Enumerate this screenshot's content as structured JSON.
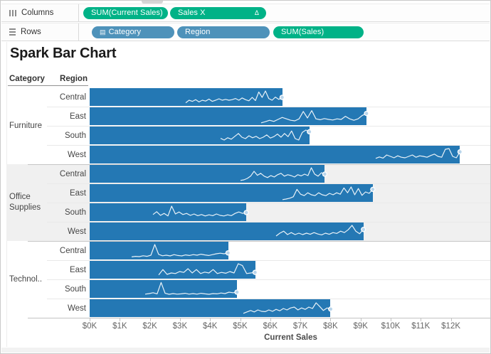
{
  "shelves": {
    "columns": {
      "label": "Columns",
      "pills": [
        {
          "label": "SUM(Current Sales)",
          "type": "continuous-measure"
        },
        {
          "label": "Sales X",
          "type": "continuous-measure",
          "badge": "Δ"
        }
      ]
    },
    "rows": {
      "label": "Rows",
      "pills": [
        {
          "label": "Category",
          "type": "discrete-dimension",
          "icon": "▤"
        },
        {
          "label": "Region",
          "type": "discrete-dimension"
        },
        {
          "label": "SUM(Sales)",
          "type": "continuous-measure"
        }
      ]
    }
  },
  "sheet": {
    "title": "Spark Bar Chart",
    "col_headers": [
      "Category",
      "Region"
    ],
    "axis": {
      "title": "Current Sales",
      "ticks": [
        "$0K",
        "$1K",
        "$2K",
        "$3K",
        "$4K",
        "$5K",
        "$6K",
        "$7K",
        "$8K",
        "$9K",
        "$10K",
        "$11K",
        "$12K"
      ]
    }
  },
  "colors": {
    "bar": "#2478b4",
    "pill_green": "#00b287",
    "pill_blue": "#4e92ba",
    "spark_line": "#ffffff",
    "marker_fill": "#b9d5eb",
    "band_gray": "#f0f0f0"
  },
  "chart_data": {
    "type": "bar",
    "orientation": "horizontal",
    "title": "Spark Bar Chart",
    "x_axis": {
      "title": "Current Sales",
      "unit": "$K",
      "min": 0,
      "max": 12,
      "tick_step": 1,
      "tick_labels": [
        "$0K",
        "$1K",
        "$2K",
        "$3K",
        "$4K",
        "$5K",
        "$6K",
        "$7K",
        "$8K",
        "$9K",
        "$10K",
        "$11K",
        "$12K"
      ]
    },
    "categories": [
      {
        "name": "Furniture",
        "display": "Furniture"
      },
      {
        "name": "Office Supplies",
        "display": "Office Supplies"
      },
      {
        "name": "Technology",
        "display": "Technol.."
      }
    ],
    "rows": [
      {
        "category": "Furniture",
        "region": "Central",
        "current_sales_k": 6.4,
        "spark_start_k": 3.2,
        "spark": [
          0.12,
          0.3,
          0.22,
          0.34,
          0.18,
          0.3,
          0.24,
          0.38,
          0.22,
          0.3,
          0.4,
          0.3,
          0.36,
          0.3,
          0.34,
          0.42,
          0.3,
          0.46,
          0.34,
          0.26,
          0.5,
          0.28,
          0.88,
          0.5,
          0.95,
          0.42,
          0.3,
          0.52,
          0.36,
          0.5
        ]
      },
      {
        "category": "Furniture",
        "region": "East",
        "current_sales_k": 9.2,
        "spark_start_k": 5.7,
        "spark": [
          0.06,
          0.14,
          0.24,
          0.16,
          0.3,
          0.44,
          0.34,
          0.24,
          0.2,
          0.34,
          0.86,
          0.4,
          0.92,
          0.34,
          0.28,
          0.36,
          0.3,
          0.26,
          0.34,
          0.3,
          0.52,
          0.34,
          0.24,
          0.34,
          0.58,
          0.72
        ]
      },
      {
        "category": "Furniture",
        "region": "South",
        "current_sales_k": 7.3,
        "spark_start_k": 4.35,
        "spark": [
          0.32,
          0.2,
          0.36,
          0.26,
          0.46,
          0.66,
          0.4,
          0.3,
          0.5,
          0.36,
          0.46,
          0.3,
          0.4,
          0.56,
          0.34,
          0.44,
          0.62,
          0.4,
          0.66,
          0.44,
          0.84,
          0.3,
          0.2,
          0.74,
          0.9,
          0.78
        ]
      },
      {
        "category": "Furniture",
        "region": "West",
        "current_sales_k": 12.3,
        "spark_start_k": 9.5,
        "spark": [
          0.26,
          0.36,
          0.28,
          0.5,
          0.4,
          0.3,
          0.44,
          0.34,
          0.3,
          0.4,
          0.5,
          0.34,
          0.44,
          0.4,
          0.34,
          0.46,
          0.56,
          0.4,
          0.34,
          0.9,
          0.95,
          0.4,
          0.3,
          0.72
        ]
      },
      {
        "category": "Office Supplies",
        "region": "Central",
        "current_sales_k": 7.8,
        "spark_start_k": 5.0,
        "spark": [
          0.06,
          0.1,
          0.2,
          0.36,
          0.7,
          0.42,
          0.56,
          0.36,
          0.26,
          0.4,
          0.3,
          0.46,
          0.56,
          0.36,
          0.46,
          0.4,
          0.3,
          0.46,
          0.38,
          0.5,
          0.4,
          0.95,
          0.5,
          0.36,
          0.6,
          0.5
        ]
      },
      {
        "category": "Office Supplies",
        "region": "East",
        "current_sales_k": 9.4,
        "spark_start_k": 6.4,
        "spark": [
          0.06,
          0.1,
          0.16,
          0.26,
          0.78,
          0.44,
          0.34,
          0.54,
          0.4,
          0.34,
          0.54,
          0.4,
          0.34,
          0.5,
          0.4,
          0.54,
          0.44,
          0.88,
          0.54,
          0.95,
          0.4,
          0.84,
          0.36,
          0.6,
          0.5,
          0.78
        ]
      },
      {
        "category": "Office Supplies",
        "region": "South",
        "current_sales_k": 5.2,
        "spark_start_k": 2.1,
        "spark": [
          0.36,
          0.56,
          0.3,
          0.44,
          0.26,
          0.95,
          0.4,
          0.54,
          0.36,
          0.44,
          0.3,
          0.4,
          0.28,
          0.36,
          0.26,
          0.34,
          0.28,
          0.4,
          0.3,
          0.26,
          0.34,
          0.28,
          0.44,
          0.54,
          0.44,
          0.5
        ]
      },
      {
        "category": "Office Supplies",
        "region": "West",
        "current_sales_k": 9.1,
        "spark_start_k": 6.2,
        "spark": [
          0.2,
          0.4,
          0.54,
          0.3,
          0.44,
          0.3,
          0.4,
          0.3,
          0.4,
          0.32,
          0.44,
          0.34,
          0.28,
          0.4,
          0.32,
          0.44,
          0.38,
          0.54,
          0.44,
          0.64,
          0.95,
          0.54,
          0.36,
          0.66
        ]
      },
      {
        "category": "Technology",
        "region": "Central",
        "current_sales_k": 4.6,
        "spark_start_k": 1.4,
        "spark": [
          0.08,
          0.12,
          0.1,
          0.16,
          0.12,
          0.2,
          0.95,
          0.26,
          0.16,
          0.2,
          0.15,
          0.24,
          0.18,
          0.15,
          0.22,
          0.18,
          0.24,
          0.2,
          0.27,
          0.22,
          0.18,
          0.24,
          0.3,
          0.34,
          0.3,
          0.36
        ]
      },
      {
        "category": "Technology",
        "region": "East",
        "current_sales_k": 5.5,
        "spark_start_k": 2.3,
        "spark": [
          0.16,
          0.54,
          0.2,
          0.3,
          0.26,
          0.4,
          0.34,
          0.6,
          0.3,
          0.54,
          0.26,
          0.36,
          0.3,
          0.54,
          0.26,
          0.34,
          0.28,
          0.4,
          0.3,
          0.95,
          0.82,
          0.26,
          0.3,
          0.34
        ]
      },
      {
        "category": "Technology",
        "region": "South",
        "current_sales_k": 4.9,
        "spark_start_k": 1.85,
        "spark": [
          0.16,
          0.2,
          0.26,
          0.18,
          0.98,
          0.22,
          0.15,
          0.2,
          0.16,
          0.18,
          0.22,
          0.16,
          0.2,
          0.16,
          0.22,
          0.18,
          0.15,
          0.2,
          0.18,
          0.24,
          0.2,
          0.3,
          0.26,
          0.3
        ]
      },
      {
        "category": "Technology",
        "region": "West",
        "current_sales_k": 8.0,
        "spark_start_k": 5.1,
        "spark": [
          0.16,
          0.26,
          0.36,
          0.26,
          0.4,
          0.3,
          0.28,
          0.4,
          0.3,
          0.44,
          0.34,
          0.5,
          0.4,
          0.54,
          0.6,
          0.4,
          0.54,
          0.44,
          0.6,
          0.5,
          0.9,
          0.64,
          0.36,
          0.54,
          0.46
        ]
      }
    ]
  }
}
